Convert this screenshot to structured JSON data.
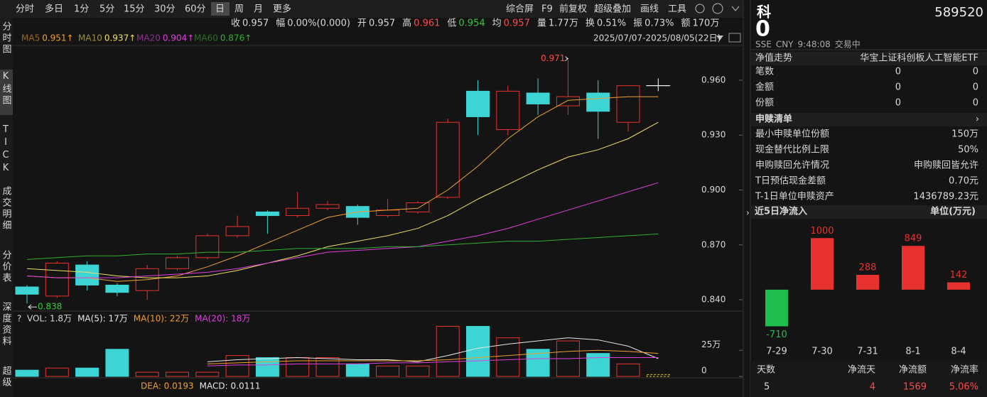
{
  "toolbar": {
    "periods": [
      "分时",
      "多日",
      "1分",
      "5分",
      "15分",
      "30分",
      "60分",
      "日",
      "周",
      "月",
      "更多"
    ],
    "tools": [
      "综合屏",
      "F9",
      "前复权",
      "超级叠加",
      "画线",
      "工具"
    ]
  },
  "side_tabs": [
    "分时图",
    "K线图",
    "TICK",
    "成交明细",
    "分价表",
    "深度资料",
    "超级"
  ],
  "quote": [
    {
      "label": "收",
      "value": "0.957",
      "color": "#d8d8d8"
    },
    {
      "label": "幅",
      "value": "0.00%(0.000)",
      "color": "#d8d8d8"
    },
    {
      "label": "开",
      "value": "0.957",
      "color": "#d8d8d8"
    },
    {
      "label": "高",
      "value": "0.961",
      "color": "#ff4a4a"
    },
    {
      "label": "低",
      "value": "0.954",
      "color": "#33cc33"
    },
    {
      "label": "均",
      "value": "0.957",
      "color": "#ff4a4a"
    },
    {
      "label": "量",
      "value": "1.77万",
      "color": "#d8d8d8"
    },
    {
      "label": "换",
      "value": "0.51%",
      "color": "#d8d8d8"
    },
    {
      "label": "振",
      "value": "0.73%",
      "color": "#d8d8d8"
    },
    {
      "label": "额",
      "value": "170万",
      "color": "#d8d8d8"
    }
  ],
  "date_range": "2025/07/07-2025/08/05(22日)",
  "chart_data": [
    {
      "type": "candlestick",
      "open": [
        0.847,
        0.842,
        0.859,
        0.848,
        0.845,
        0.857,
        0.863,
        0.875,
        0.888,
        0.886,
        0.89,
        0.891,
        0.886,
        0.888,
        0.896,
        0.954,
        0.933,
        0.953,
        0.946,
        0.953,
        0.937,
        0.957
      ],
      "high": [
        0.848,
        0.861,
        0.861,
        0.849,
        0.859,
        0.864,
        0.876,
        0.886,
        0.889,
        0.899,
        0.894,
        0.892,
        0.895,
        0.894,
        0.939,
        0.96,
        0.957,
        0.961,
        0.971,
        0.96,
        0.957,
        0.961
      ],
      "low": [
        0.838,
        0.841,
        0.845,
        0.842,
        0.84,
        0.856,
        0.862,
        0.874,
        0.876,
        0.885,
        0.889,
        0.881,
        0.885,
        0.887,
        0.895,
        0.93,
        0.93,
        0.941,
        0.941,
        0.928,
        0.932,
        0.954
      ],
      "close": [
        0.843,
        0.86,
        0.848,
        0.844,
        0.857,
        0.863,
        0.875,
        0.88,
        0.886,
        0.89,
        0.892,
        0.885,
        0.889,
        0.893,
        0.937,
        0.94,
        0.954,
        0.947,
        0.951,
        0.943,
        0.957,
        0.957
      ],
      "up_color": "#e8322f",
      "down_color": "#3dd4d4",
      "ylim": [
        0.834,
        0.979
      ],
      "yticks": [
        {
          "value": 0.84,
          "label": "0.840"
        },
        {
          "value": 0.87,
          "label": "0.870"
        },
        {
          "value": 0.9,
          "label": "0.900"
        },
        {
          "value": 0.93,
          "label": "0.930"
        },
        {
          "value": 0.96,
          "label": "0.960"
        }
      ],
      "series": [
        {
          "name": "MA5",
          "legend_value": "0.951↑",
          "color": "#f0a030",
          "values": [
            0.853,
            0.852,
            0.852,
            0.85,
            0.851,
            0.853,
            0.858,
            0.864,
            0.871,
            0.878,
            0.885,
            0.888,
            0.889,
            0.89,
            0.9,
            0.913,
            0.928,
            0.94,
            0.949,
            0.95,
            0.951,
            0.951
          ]
        },
        {
          "name": "MA10",
          "legend_value": "0.937↑",
          "color": "#f0e060",
          "values": [
            0.857,
            0.856,
            0.855,
            0.853,
            0.852,
            0.852,
            0.853,
            0.856,
            0.86,
            0.864,
            0.869,
            0.872,
            0.875,
            0.879,
            0.886,
            0.895,
            0.903,
            0.911,
            0.918,
            0.922,
            0.928,
            0.937
          ]
        },
        {
          "name": "MA20",
          "legend_value": "0.904↑",
          "color": "#e040e0",
          "values": [
            0.853,
            0.852,
            0.852,
            0.852,
            0.853,
            0.854,
            0.855,
            0.857,
            0.86,
            0.863,
            0.866,
            0.867,
            0.868,
            0.869,
            0.872,
            0.875,
            0.879,
            0.884,
            0.889,
            0.894,
            0.899,
            0.904
          ]
        },
        {
          "name": "MA60",
          "legend_value": "0.876↑",
          "color": "#30b030",
          "values": [
            0.862,
            0.863,
            0.864,
            0.864,
            0.865,
            0.865,
            0.866,
            0.866,
            0.867,
            0.868,
            0.868,
            0.868,
            0.869,
            0.869,
            0.87,
            0.871,
            0.872,
            0.872,
            0.873,
            0.874,
            0.875,
            0.876
          ]
        }
      ],
      "annotations": {
        "high": "0.971",
        "low": "0.838"
      }
    },
    {
      "type": "volume",
      "label": "VOL: 1.8万",
      "values": [
        6,
        8,
        8,
        26,
        4,
        4,
        4,
        20,
        18,
        18,
        18,
        12,
        10,
        10,
        48,
        48,
        37,
        26,
        34,
        22,
        12,
        1.8
      ],
      "ylim": [
        0,
        49
      ],
      "yticks": [
        0,
        {
          "value": 25,
          "label": "25万"
        }
      ],
      "series": [
        {
          "name": "MA(5)",
          "label": "MA(5): 17万",
          "color": "#e8e8e8",
          "values": [
            null,
            null,
            null,
            null,
            null,
            null,
            14,
            16,
            17,
            18,
            17,
            16,
            16,
            14,
            20,
            27,
            31,
            34,
            37,
            35,
            29,
            17
          ]
        },
        {
          "name": "MA(10)",
          "label": "MA(10): 22万",
          "color": "#f0a030",
          "values": [
            null,
            null,
            null,
            null,
            null,
            null,
            12,
            13,
            14,
            15,
            15,
            15,
            15,
            15,
            16,
            18,
            20,
            22,
            24,
            25,
            24,
            22
          ]
        },
        {
          "name": "MA(20)",
          "label": "MA(20): 18万",
          "color": "#e040e0",
          "values": [
            null,
            null,
            null,
            null,
            null,
            null,
            10,
            11,
            11,
            12,
            12,
            12,
            13,
            13,
            14,
            15,
            16,
            17,
            17,
            18,
            18,
            18
          ]
        }
      ]
    },
    {
      "type": "inflow",
      "title": "近5日净流入",
      "unit": "单位(万元)",
      "categories": [
        "7-29",
        "7-30",
        "7-31",
        "8-1",
        "8-4"
      ],
      "values": [
        -710,
        1000,
        288,
        849,
        142
      ],
      "up_color": "#e8322f",
      "down_color": "#1fbf4f",
      "ylim": [
        -800,
        1100
      ]
    }
  ],
  "macd": [
    "DEA: 0.0193",
    "MACD: 0.0111"
  ],
  "panel": {
    "name": "科",
    "price": "0",
    "code": "589520",
    "status": [
      "SSE",
      "CNY",
      "9:48:08",
      "交易中"
    ],
    "nav": [
      "净值走势",
      "华宝上证科创板人工智能ETF"
    ],
    "counts": [
      [
        "笔数",
        "0",
        "0"
      ],
      [
        "金额",
        "0",
        "0"
      ],
      [
        "份额",
        "0",
        "0"
      ]
    ],
    "list_title": "申赎清单",
    "list": [
      [
        "最小申赎单位份额",
        "150万"
      ],
      [
        "现金替代比例上限",
        "50%"
      ],
      [
        "申购赎回允许情况",
        "申购赎回皆允许"
      ],
      [
        "T日预估现金差额",
        "0.70元"
      ],
      [
        "T-1日单位申赎资产",
        "1436789.23元"
      ]
    ],
    "summary": {
      "headers": [
        "天数",
        "净流天",
        "净流额",
        "净流率"
      ],
      "values": [
        "5",
        "4",
        "1569",
        "5.06%"
      ]
    }
  }
}
